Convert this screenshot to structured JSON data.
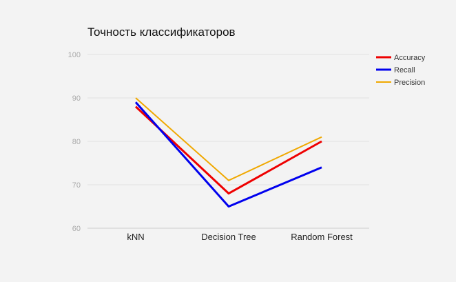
{
  "chart_data": {
    "type": "line",
    "title": "Точность классификаторов",
    "xlabel": "",
    "ylabel": "",
    "categories": [
      "kNN",
      "Decision Tree",
      "Random Forest"
    ],
    "ylim": [
      60,
      100
    ],
    "yticks": [
      60,
      70,
      80,
      90,
      100
    ],
    "grid": true,
    "legend_position": "right",
    "series": [
      {
        "name": "Accuracy",
        "values": [
          88,
          68,
          80
        ],
        "color": "#ee0000"
      },
      {
        "name": "Recall",
        "values": [
          89,
          65,
          74
        ],
        "color": "#0000ee"
      },
      {
        "name": "Precision",
        "values": [
          90,
          71,
          81
        ],
        "color": "#f0a800"
      }
    ]
  }
}
